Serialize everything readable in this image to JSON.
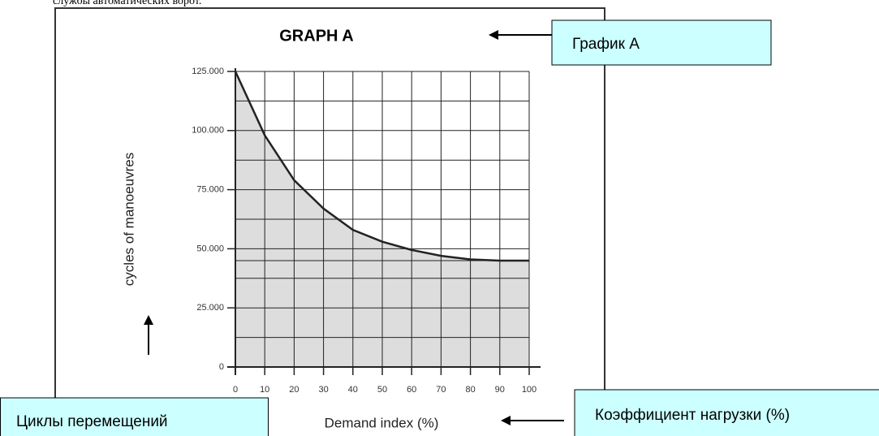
{
  "header_text": "службы автоматических ворот.",
  "chart_data": {
    "type": "line",
    "title": "GRAPH A",
    "x_label": "Demand index (%)",
    "y_label": "cycles of manoeuvres",
    "x": [
      0,
      10,
      20,
      30,
      40,
      50,
      60,
      70,
      80,
      90,
      100
    ],
    "series": [
      {
        "name": null,
        "color": "#222222",
        "fill": "#dddddd",
        "values": [
          125000,
          98000,
          79000,
          67000,
          58000,
          53000,
          49500,
          47000,
          45500,
          45000,
          45000
        ]
      }
    ],
    "xlim": [
      0,
      100
    ],
    "xticks": [
      0,
      10,
      20,
      30,
      40,
      50,
      60,
      70,
      80,
      90,
      100
    ],
    "ylim": [
      0,
      125000
    ],
    "yticks": [
      0,
      {
        "value": 25000,
        "label": "25.000"
      },
      {
        "value": 50000,
        "label": "50.000"
      },
      {
        "value": 75000,
        "label": "75.000"
      },
      {
        "value": 100000,
        "label": "100.000"
      },
      {
        "value": 125000,
        "label": "125.000"
      }
    ],
    "minor_yticks": [
      12500,
      37500,
      45000,
      62500,
      87500,
      112500
    ],
    "grid": true
  },
  "annotations": [
    "График А",
    "Циклы перемещений",
    "Коэффициент нагрузки (%)"
  ]
}
